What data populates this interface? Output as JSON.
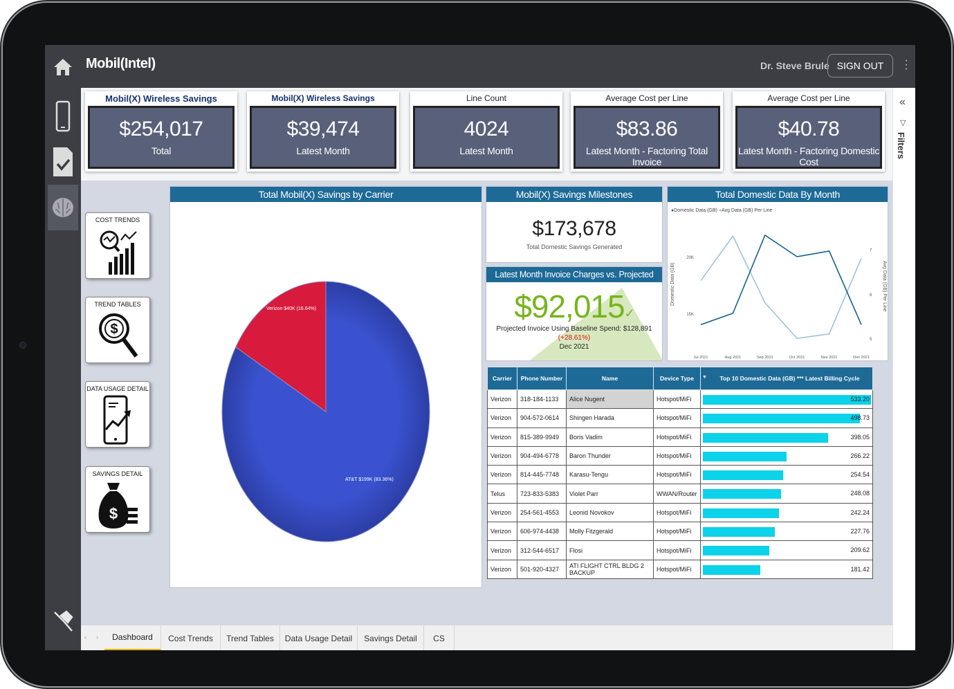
{
  "app": {
    "name": "Mobil(Intel)",
    "user": "Dr. Steve Brule",
    "sign_out": "SIGN OUT"
  },
  "kpis": [
    {
      "title": "Mobil(X) Wireless Savings",
      "value": "$254,017",
      "sub": "Total"
    },
    {
      "title": "Mobil(X) Wireless Savings",
      "value": "$39,474",
      "sub": "Latest Month"
    },
    {
      "title": "Line Count",
      "value": "4024",
      "sub": "Latest Month"
    },
    {
      "title": "Average Cost per Line",
      "value": "$83.86",
      "sub": "Latest Month - Factoring Total Invoice"
    },
    {
      "title": "Average Cost per Line",
      "value": "$40.78",
      "sub": "Latest Month - Factoring Domestic Cost"
    }
  ],
  "nav_cards": [
    "COST TRENDS",
    "TREND TABLES",
    "DATA USAGE DETAIL",
    "SAVINGS DETAIL"
  ],
  "pie": {
    "title": "Total Mobil(X) Savings by Carrier",
    "verizon_label": "Verizon $40K (16.64%)",
    "att_label": "AT&T $199K (83.36%)"
  },
  "milestones": {
    "title": "Mobil(X) Savings Milestones",
    "value": "$173,678",
    "sub": "Total Domestic Savings Generated"
  },
  "invoice": {
    "title": "Latest Month Invoice Charges vs. Projected Invoice",
    "value": "$92,015",
    "projected": "Projected Invoice Using Baseline Spend: $128,891",
    "pct": "(+28.61%)",
    "month": "Dec 2021"
  },
  "chart_data": [
    {
      "type": "pie",
      "title": "Total Mobil(X) Savings by Carrier",
      "categories": [
        "AT&T",
        "Verizon"
      ],
      "values": [
        199,
        40
      ],
      "percentages": [
        83.36,
        16.64
      ],
      "colors": [
        "#3a52cf",
        "#d81b3c"
      ]
    },
    {
      "type": "line",
      "title": "Total Domestic Data By Month",
      "x": [
        "Jul 2021",
        "Aug 2021",
        "Sep 2021",
        "Oct 2021",
        "Nov 2021",
        "Dec 2021"
      ],
      "series": [
        {
          "name": "Domestic Data (GB)",
          "values": [
            14000,
            15000,
            21900,
            20000,
            20500,
            14000
          ],
          "color": "#15608f"
        },
        {
          "name": "Avg Data (GB) Per Line",
          "values": [
            6.3,
            7.3,
            5.8,
            5.0,
            5.1,
            6.8
          ],
          "color": "#9dc3da"
        }
      ],
      "ylabel": "Domestic Data (GB)",
      "y2label": "Avg Data (GB) Per Line",
      "yticks": [
        "15K",
        "20K"
      ],
      "y2ticks": [
        "5",
        "6",
        "7"
      ],
      "legend": "top-left"
    }
  ],
  "line_chart": {
    "title": "Total Domestic Data By Month",
    "legend1": "Domestic Data (GB)",
    "legend2": "Avg Data (GB) Per Line",
    "ylabel": "Domestic Data (GB)",
    "y2label": "Avg Data (GB) Per Line",
    "yticks": [
      "20K",
      "15K"
    ],
    "y2ticks": [
      "7",
      "6",
      "5"
    ],
    "xticks": [
      "Jul 2021",
      "Aug 2021",
      "Sep 2021",
      "Oct 2021",
      "Nov 2021",
      "Dec 2021"
    ]
  },
  "table": {
    "headers": [
      "Carrier",
      "Phone Number",
      "Name",
      "Device Type",
      "Top 10 Domestic Data (GB) *** Latest Billing Cycle"
    ],
    "rows": [
      [
        "Verizon",
        "318-184-1133",
        "Alice Nugent",
        "Hotspot/MiFi",
        "533.20"
      ],
      [
        "Verizon",
        "904-572-0614",
        "Shingen Harada",
        "Hotspot/MiFi",
        "498.73"
      ],
      [
        "Verizon",
        "815-389-9949",
        "Boris Vadim",
        "Hotspot/MiFi",
        "398.05"
      ],
      [
        "Verizon",
        "904-494-6778",
        "Baron Thunder",
        "Hotspot/MiFi",
        "266.22"
      ],
      [
        "Verizon",
        "814-445-7748",
        "Karasu-Tengu",
        "Hotspot/MiFi",
        "254.54"
      ],
      [
        "Telus",
        "723-833-5383",
        "Violet Parr",
        "WWAN/Router",
        "248.08"
      ],
      [
        "Verizon",
        "254-561-4553",
        "Leonid Novokov",
        "Hotspot/MiFi",
        "242.24"
      ],
      [
        "Verizon",
        "606-974-4438",
        "Molly Fitzgerald",
        "Hotspot/MiFi",
        "227.76"
      ],
      [
        "Verizon",
        "312-544-6517",
        "Flosi",
        "Hotspot/MiFi",
        "209.62"
      ],
      [
        "Verizon",
        "501-920-4327",
        "ATI FLIGHT CTRL BLDG 2 BACKUP",
        "Hotspot/MiFi",
        "181.42"
      ]
    ]
  },
  "tabs": [
    "Dashboard",
    "Cost Trends",
    "Trend Tables",
    "Data Usage Detail",
    "Savings Detail",
    "CS"
  ],
  "filters_label": "Filters"
}
